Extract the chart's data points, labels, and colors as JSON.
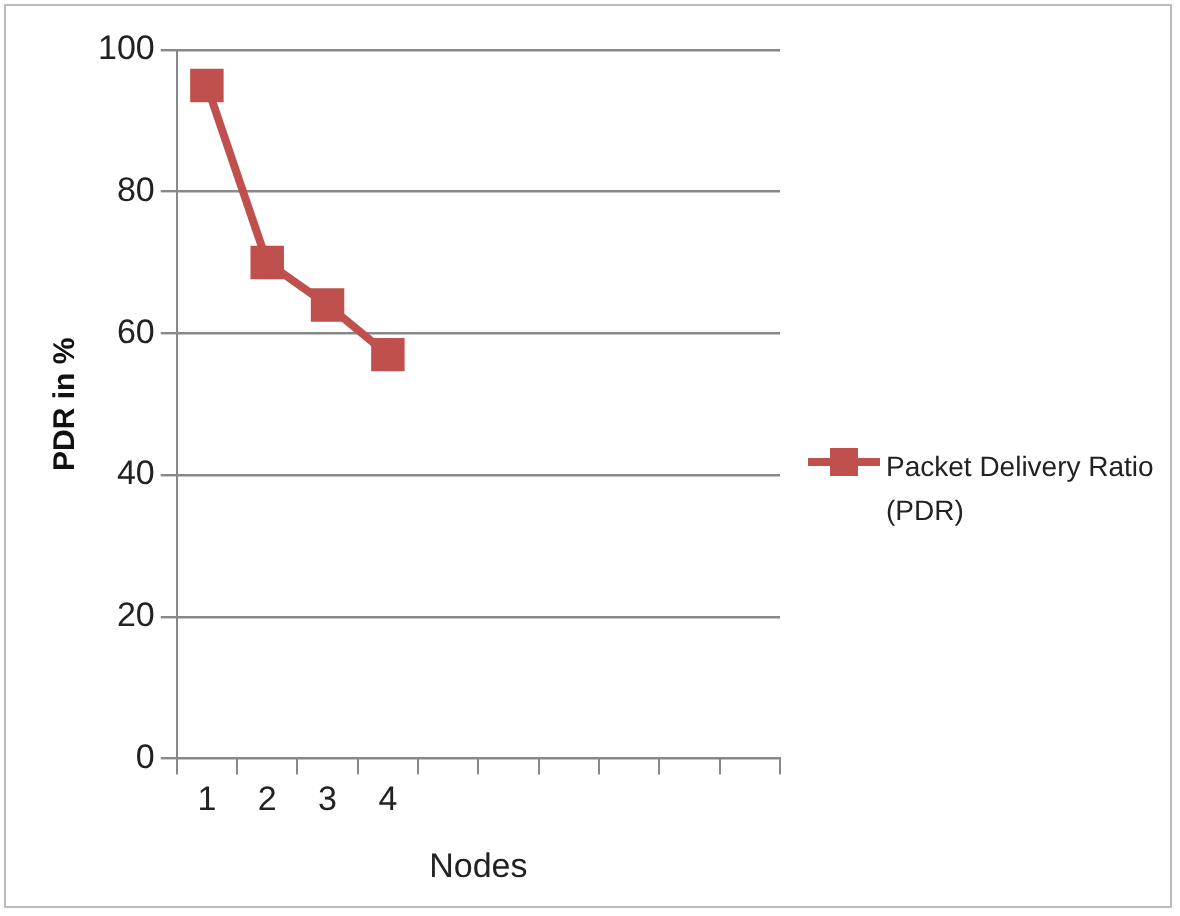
{
  "chart_data": {
    "type": "line",
    "xlabel": "Nodes",
    "ylabel": "PDR in %",
    "categories": [
      "1",
      "2",
      "3",
      "4",
      null,
      null,
      null,
      null,
      null,
      null
    ],
    "series": [
      {
        "name": "Packet Delivery Ratio (PDR)",
        "color": "#c0504d",
        "values": [
          95,
          70,
          64,
          57,
          null,
          null,
          null,
          null,
          null,
          null
        ]
      }
    ],
    "ylim": [
      0,
      100
    ],
    "yticks": [
      0,
      20,
      40,
      60,
      80,
      100
    ],
    "grid": "y",
    "legend": "right",
    "marker": "square",
    "line_style": "solid"
  }
}
